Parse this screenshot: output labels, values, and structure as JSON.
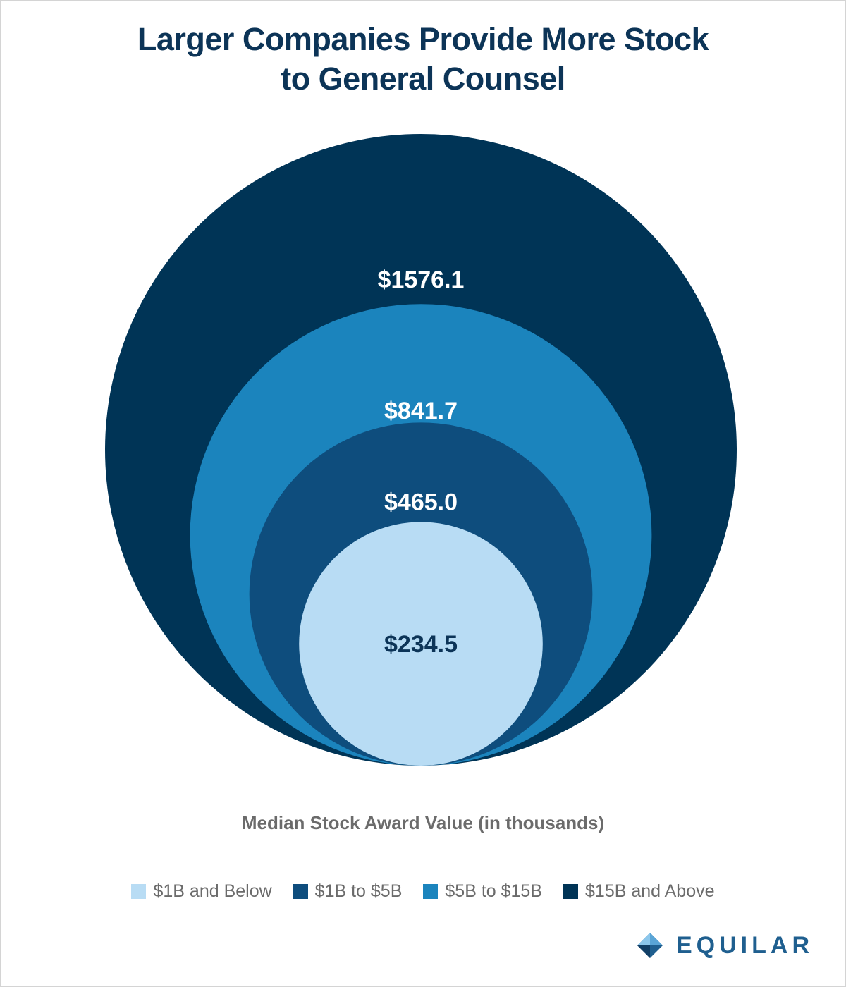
{
  "title_lines": [
    "Larger Companies Provide More Stock",
    "to General Counsel"
  ],
  "brand": {
    "name": "EQUILAR",
    "logo_icon": "equilar-diamond-icon"
  },
  "chart_data": {
    "type": "nested-bubble",
    "title": "Larger Companies Provide More Stock to General Counsel",
    "xlabel": "Median Stock Award Value (in thousands)",
    "legend_position": "bottom",
    "series": [
      {
        "name": "$1B and Below",
        "value": 234.5,
        "label": "$234.5",
        "color": "#b8dcf4",
        "label_color": "#0c3457"
      },
      {
        "name": "$1B to $5B",
        "value": 465.0,
        "label": "$465.0",
        "color": "#0e4d7d",
        "label_color": "#ffffff"
      },
      {
        "name": "$5B to $15B",
        "value": 841.7,
        "label": "$841.7",
        "color": "#1b84bd",
        "label_color": "#ffffff"
      },
      {
        "name": "$15B and Above",
        "value": 1576.1,
        "label": "$1576.1",
        "color": "#003456",
        "label_color": "#ffffff"
      }
    ]
  }
}
